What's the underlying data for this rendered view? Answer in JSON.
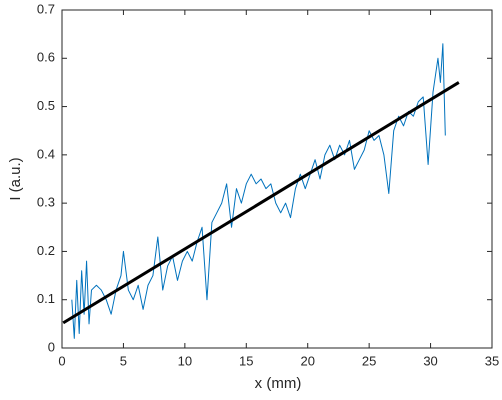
{
  "chart_data": {
    "type": "line",
    "xlabel": "x (mm)",
    "ylabel": "I (a.u.)",
    "xlim": [
      0,
      35
    ],
    "xticks": [
      0,
      5,
      10,
      15,
      20,
      25,
      30,
      35
    ],
    "ylim": [
      0,
      0.7
    ],
    "yticks": [
      0,
      0.1,
      0.2,
      0.3,
      0.4,
      0.5,
      0.6,
      0.7
    ],
    "grid": false,
    "series": [
      {
        "color": "#0072bd",
        "width": 1,
        "x": [
          0.8,
          1.0,
          1.2,
          1.4,
          1.6,
          1.8,
          2.0,
          2.2,
          2.4,
          2.8,
          3.2,
          3.6,
          4.0,
          4.4,
          4.8,
          5.0,
          5.4,
          5.8,
          6.2,
          6.6,
          7.0,
          7.4,
          7.8,
          8.2,
          8.6,
          9.0,
          9.4,
          9.8,
          10.2,
          10.6,
          11.0,
          11.4,
          11.8,
          12.2,
          12.6,
          13.0,
          13.4,
          13.8,
          14.2,
          14.6,
          15.0,
          15.4,
          15.8,
          16.2,
          16.6,
          17.0,
          17.4,
          17.8,
          18.2,
          18.6,
          19.0,
          19.4,
          19.8,
          20.2,
          20.6,
          21.0,
          21.4,
          21.8,
          22.2,
          22.6,
          23.0,
          23.4,
          23.8,
          24.2,
          24.6,
          25.0,
          25.4,
          25.8,
          26.2,
          26.6,
          27.0,
          27.4,
          27.8,
          28.2,
          28.6,
          29.0,
          29.4,
          29.8,
          30.2,
          30.6,
          30.8,
          31.0,
          31.2
        ],
        "values": [
          0.1,
          0.02,
          0.14,
          0.03,
          0.16,
          0.07,
          0.18,
          0.05,
          0.12,
          0.13,
          0.12,
          0.1,
          0.07,
          0.12,
          0.15,
          0.2,
          0.12,
          0.1,
          0.13,
          0.08,
          0.13,
          0.15,
          0.23,
          0.12,
          0.17,
          0.19,
          0.14,
          0.18,
          0.2,
          0.18,
          0.22,
          0.25,
          0.1,
          0.26,
          0.28,
          0.3,
          0.34,
          0.25,
          0.33,
          0.3,
          0.34,
          0.36,
          0.34,
          0.35,
          0.33,
          0.34,
          0.3,
          0.28,
          0.3,
          0.27,
          0.33,
          0.36,
          0.33,
          0.36,
          0.39,
          0.35,
          0.4,
          0.42,
          0.39,
          0.42,
          0.4,
          0.43,
          0.37,
          0.39,
          0.41,
          0.45,
          0.43,
          0.44,
          0.4,
          0.32,
          0.45,
          0.48,
          0.46,
          0.49,
          0.48,
          0.51,
          0.52,
          0.38,
          0.53,
          0.6,
          0.55,
          0.63,
          0.44
        ]
      },
      {
        "color": "#000000",
        "width": 3,
        "x": [
          0.1,
          32.3
        ],
        "values": [
          0.052,
          0.55
        ]
      }
    ]
  }
}
